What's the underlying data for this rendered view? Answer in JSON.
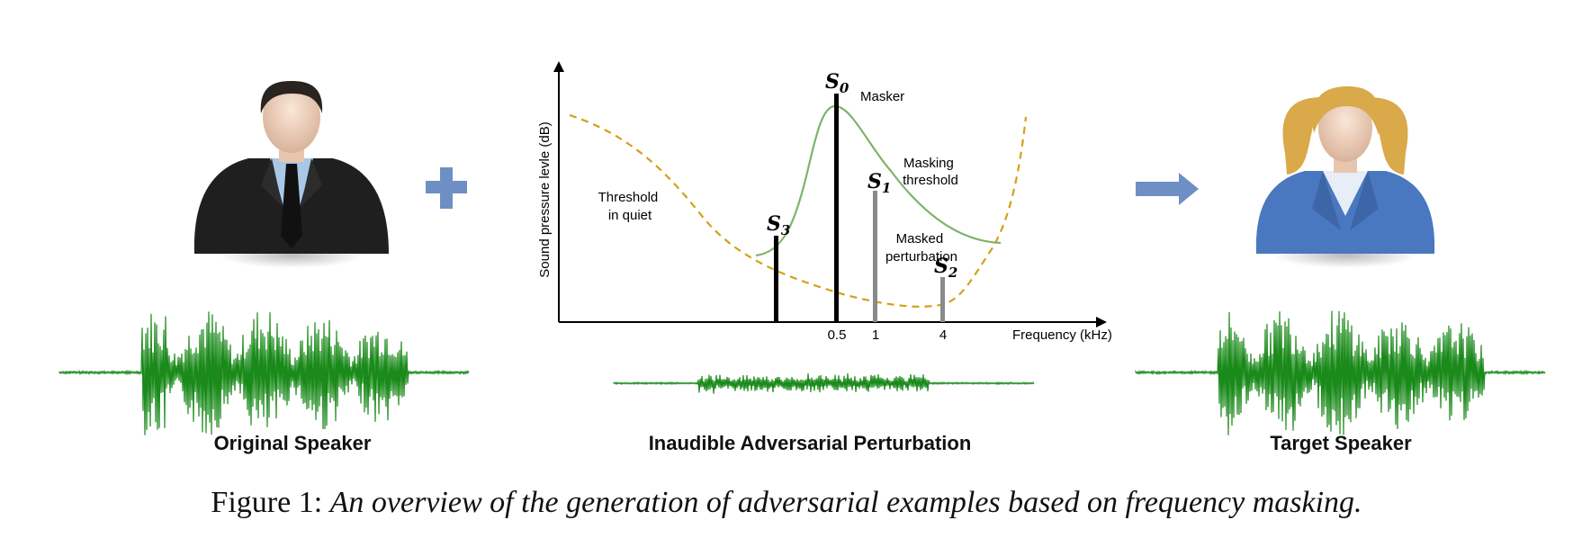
{
  "panels": {
    "original_label": "Original Speaker",
    "perturbation_label": "Inaudible Adversarial Perturbation",
    "target_label": "Target Speaker"
  },
  "operators": {
    "plus": "+",
    "arrow": "→"
  },
  "chart_data": {
    "type": "line",
    "xlabel": "Frequency (kHz)",
    "ylabel": "Sound pressure levle (dB)",
    "x_ticks": [
      "0.5",
      "1",
      "4"
    ],
    "series": [
      {
        "name": "Threshold in quiet",
        "style": "dashed",
        "color": "#d4a017"
      },
      {
        "name": "Masking threshold",
        "style": "solid",
        "color": "#7fb36a"
      }
    ],
    "signals": [
      {
        "name": "S",
        "sub": "0",
        "x": "0.5",
        "role": "Masker",
        "color": "#000000"
      },
      {
        "name": "S",
        "sub": "1",
        "x": "1",
        "role": "Masked perturbation",
        "color": "#8a8a8a"
      },
      {
        "name": "S",
        "sub": "2",
        "x": "4",
        "role": "Masked perturbation",
        "color": "#8a8a8a"
      },
      {
        "name": "S",
        "sub": "3",
        "x": "",
        "role": "",
        "color": "#000000"
      }
    ],
    "annotations": {
      "masker": "Masker",
      "masking_threshold": [
        "Masking",
        "threshold"
      ],
      "threshold_quiet": [
        "Threshold",
        "in quiet"
      ],
      "masked_perturbation": [
        "Masked",
        "perturbation"
      ]
    }
  },
  "caption": {
    "prefix": "Figure 1: ",
    "body": "An overview of the generation of adversarial examples based on frequency masking."
  },
  "colors": {
    "waveform": "#1a8a1a",
    "accent": "#6e8fc4",
    "suit_male": "#222222",
    "suit_female": "#4a78c0",
    "hair_female": "#d9a94a",
    "threshold_quiet": "#d4a017",
    "masking_threshold": "#7fb36a"
  }
}
